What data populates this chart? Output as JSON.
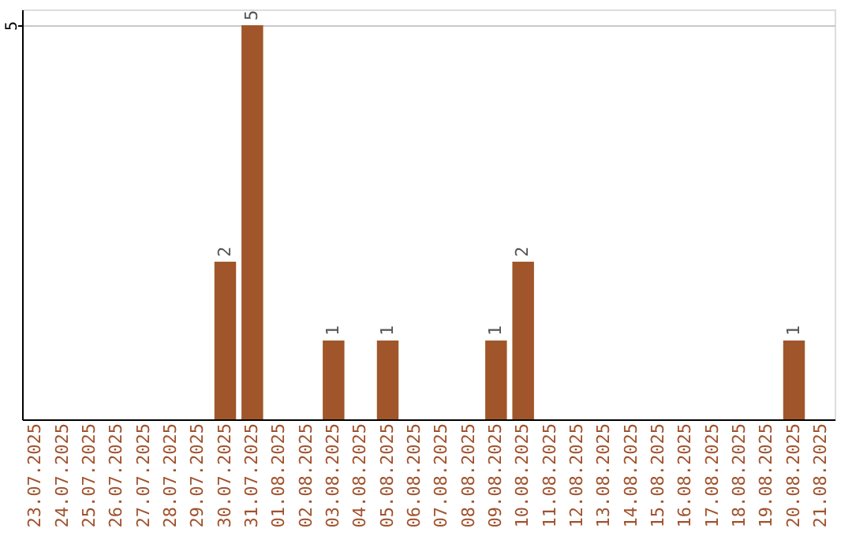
{
  "chart_data": {
    "type": "bar",
    "categories": [
      "23.07.2025",
      "24.07.2025",
      "25.07.2025",
      "26.07.2025",
      "27.07.2025",
      "28.07.2025",
      "29.07.2025",
      "30.07.2025",
      "31.07.2025",
      "01.08.2025",
      "02.08.2025",
      "03.08.2025",
      "04.08.2025",
      "05.08.2025",
      "06.08.2025",
      "07.08.2025",
      "08.08.2025",
      "09.08.2025",
      "10.08.2025",
      "11.08.2025",
      "12.08.2025",
      "13.08.2025",
      "14.08.2025",
      "15.08.2025",
      "16.08.2025",
      "17.08.2025",
      "18.08.2025",
      "19.08.2025",
      "20.08.2025",
      "21.08.2025"
    ],
    "values": [
      0,
      0,
      0,
      0,
      0,
      0,
      0,
      2,
      5,
      0,
      0,
      1,
      0,
      1,
      0,
      0,
      0,
      1,
      2,
      0,
      0,
      0,
      0,
      0,
      0,
      0,
      0,
      0,
      1,
      0
    ],
    "value_labels": [
      null,
      null,
      null,
      null,
      null,
      null,
      null,
      "2",
      "5",
      null,
      null,
      "1",
      null,
      "1",
      null,
      null,
      null,
      "1",
      "2",
      null,
      null,
      null,
      null,
      null,
      null,
      null,
      null,
      null,
      "1",
      null
    ],
    "color": "#a0562a",
    "ylim": [
      0,
      5.2
    ],
    "yticks": [
      5
    ],
    "grid": "y"
  }
}
